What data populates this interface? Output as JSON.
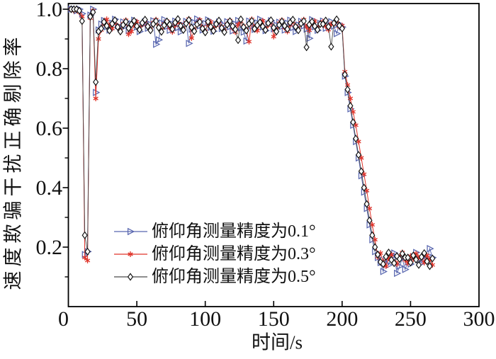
{
  "chart_data": {
    "type": "line",
    "title": "",
    "xlabel": "时间/s",
    "ylabel": "速度欺骗干扰正确剔除率",
    "xlim": [
      0,
      300
    ],
    "ylim": [
      0,
      1.02
    ],
    "x_ticks": [
      0,
      50,
      100,
      150,
      200,
      250,
      300
    ],
    "y_ticks": [
      0.2,
      0.4,
      0.6,
      0.8,
      1.0
    ],
    "y_minor_ticks": [
      0.1,
      0.3,
      0.5,
      0.7,
      0.9
    ],
    "grid": false,
    "legend_position": "lower-left-inside",
    "axis_color": "#000000",
    "x": [
      2,
      4,
      6,
      8,
      10,
      12,
      14,
      16,
      18,
      20,
      22,
      24,
      26,
      28,
      30,
      32,
      34,
      36,
      38,
      40,
      42,
      44,
      46,
      48,
      50,
      52,
      54,
      56,
      58,
      60,
      62,
      64,
      66,
      68,
      70,
      72,
      74,
      76,
      78,
      80,
      82,
      84,
      86,
      88,
      90,
      92,
      94,
      96,
      98,
      100,
      102,
      104,
      106,
      108,
      110,
      112,
      114,
      116,
      118,
      120,
      122,
      124,
      126,
      128,
      130,
      132,
      134,
      136,
      138,
      140,
      142,
      144,
      146,
      148,
      150,
      152,
      154,
      156,
      158,
      160,
      162,
      164,
      166,
      168,
      170,
      172,
      174,
      176,
      178,
      180,
      182,
      184,
      186,
      188,
      190,
      192,
      194,
      196,
      198,
      200,
      202,
      204,
      206,
      208,
      210,
      212,
      214,
      216,
      218,
      220,
      222,
      224,
      226,
      228,
      230,
      232,
      234,
      236,
      238,
      240,
      242,
      244,
      246,
      248,
      250,
      252,
      254,
      256,
      258,
      260,
      262,
      264,
      266
    ],
    "series": [
      {
        "name": "俯仰角测量精度为0.1°",
        "marker": "triangle-right",
        "color": "#5866af",
        "line_color": "#5866af",
        "values": [
          1.0,
          1.0,
          0.995,
          1.0,
          0.985,
          0.175,
          0.185,
          0.98,
          1.0,
          0.72,
          0.93,
          0.95,
          0.962,
          0.941,
          0.93,
          0.953,
          0.966,
          0.945,
          0.935,
          0.957,
          0.944,
          0.928,
          0.951,
          0.963,
          0.94,
          0.925,
          0.947,
          0.958,
          0.936,
          0.949,
          0.961,
          0.882,
          0.897,
          0.954,
          0.965,
          0.942,
          0.929,
          0.95,
          0.96,
          0.938,
          0.924,
          0.946,
          0.959,
          0.885,
          0.933,
          0.955,
          0.967,
          0.944,
          0.93,
          0.952,
          0.964,
          0.939,
          0.926,
          0.949,
          0.957,
          0.935,
          0.945,
          0.958,
          0.941,
          0.927,
          0.95,
          0.962,
          0.937,
          0.923,
          0.893,
          0.96,
          0.943,
          0.932,
          0.954,
          0.966,
          0.94,
          0.928,
          0.951,
          0.961,
          0.934,
          0.946,
          0.956,
          0.942,
          0.93,
          0.953,
          0.963,
          0.938,
          0.925,
          0.947,
          0.959,
          0.944,
          0.933,
          0.902,
          0.965,
          0.941,
          0.929,
          0.952,
          0.96,
          0.936,
          0.948,
          0.958,
          0.943,
          0.918,
          0.95,
          0.94,
          0.775,
          0.72,
          0.665,
          0.61,
          0.555,
          0.5,
          0.44,
          0.385,
          0.33,
          0.275,
          0.225,
          0.185,
          0.165,
          0.148,
          0.118,
          0.158,
          0.14,
          0.167,
          0.18,
          0.112,
          0.136,
          0.162,
          0.125,
          0.15,
          0.143,
          0.168,
          0.182,
          0.157,
          0.146,
          0.17,
          0.16,
          0.195,
          0.165
        ]
      },
      {
        "name": "俯仰角测量精度为0.3°",
        "marker": "asterisk",
        "color": "#e0352b",
        "line_color": "#e0352b",
        "values": [
          1.0,
          0.995,
          1.0,
          0.99,
          0.975,
          0.165,
          0.155,
          0.97,
          0.995,
          0.7,
          0.9,
          0.93,
          0.953,
          0.966,
          0.945,
          0.935,
          0.957,
          0.944,
          0.928,
          0.951,
          0.963,
          0.916,
          0.925,
          0.947,
          0.958,
          0.936,
          0.949,
          0.961,
          0.943,
          0.931,
          0.954,
          0.965,
          0.942,
          0.929,
          0.95,
          0.96,
          0.938,
          0.924,
          0.946,
          0.959,
          0.948,
          0.933,
          0.955,
          0.967,
          0.903,
          0.93,
          0.952,
          0.964,
          0.939,
          0.926,
          0.949,
          0.957,
          0.935,
          0.945,
          0.958,
          0.941,
          0.927,
          0.95,
          0.962,
          0.937,
          0.923,
          0.948,
          0.96,
          0.943,
          0.932,
          0.891,
          0.966,
          0.94,
          0.928,
          0.951,
          0.961,
          0.934,
          0.946,
          0.956,
          0.908,
          0.93,
          0.953,
          0.963,
          0.938,
          0.925,
          0.947,
          0.959,
          0.944,
          0.933,
          0.955,
          0.965,
          0.941,
          0.929,
          0.952,
          0.96,
          0.936,
          0.948,
          0.958,
          0.943,
          0.931,
          0.95,
          0.95,
          0.962,
          0.941,
          0.945,
          0.79,
          0.745,
          0.7,
          0.655,
          0.61,
          0.555,
          0.5,
          0.445,
          0.39,
          0.33,
          0.275,
          0.225,
          0.167,
          0.18,
          0.152,
          0.136,
          0.162,
          0.175,
          0.15,
          0.143,
          0.168,
          0.182,
          0.157,
          0.146,
          0.17,
          0.16,
          0.178,
          0.165,
          0.165,
          0.148,
          0.172,
          0.158,
          0.14
        ]
      },
      {
        "name": "俯仰角测量精度为0.5°",
        "marker": "diamond",
        "color": "#111111",
        "line_color": "#4a4a4a",
        "values": [
          1.0,
          1.0,
          1.0,
          0.995,
          0.96,
          0.24,
          0.185,
          0.975,
          0.99,
          0.755,
          0.925,
          0.935,
          0.957,
          0.944,
          0.928,
          0.951,
          0.963,
          0.94,
          0.925,
          0.947,
          0.958,
          0.936,
          0.949,
          0.961,
          0.943,
          0.931,
          0.954,
          0.965,
          0.942,
          0.929,
          0.95,
          0.96,
          0.938,
          0.924,
          0.946,
          0.959,
          0.948,
          0.933,
          0.955,
          0.967,
          0.944,
          0.93,
          0.952,
          0.964,
          0.939,
          0.926,
          0.949,
          0.957,
          0.935,
          0.922,
          0.958,
          0.941,
          0.927,
          0.95,
          0.962,
          0.937,
          0.923,
          0.948,
          0.96,
          0.943,
          0.932,
          0.896,
          0.966,
          0.94,
          0.928,
          0.951,
          0.961,
          0.934,
          0.946,
          0.956,
          0.942,
          0.93,
          0.953,
          0.963,
          0.938,
          0.925,
          0.947,
          0.959,
          0.944,
          0.933,
          0.955,
          0.965,
          0.941,
          0.929,
          0.952,
          0.96,
          0.872,
          0.948,
          0.958,
          0.943,
          0.931,
          0.95,
          0.95,
          0.962,
          0.941,
          0.874,
          0.953,
          0.966,
          0.945,
          0.935,
          0.78,
          0.73,
          0.675,
          0.62,
          0.565,
          0.51,
          0.455,
          0.4,
          0.345,
          0.29,
          0.24,
          0.2,
          0.175,
          0.15,
          0.143,
          0.168,
          0.182,
          0.157,
          0.146,
          0.17,
          0.16,
          0.178,
          0.165,
          0.165,
          0.148,
          0.172,
          0.158,
          0.14,
          0.167,
          0.18,
          0.152,
          0.136,
          0.162
        ]
      }
    ]
  }
}
